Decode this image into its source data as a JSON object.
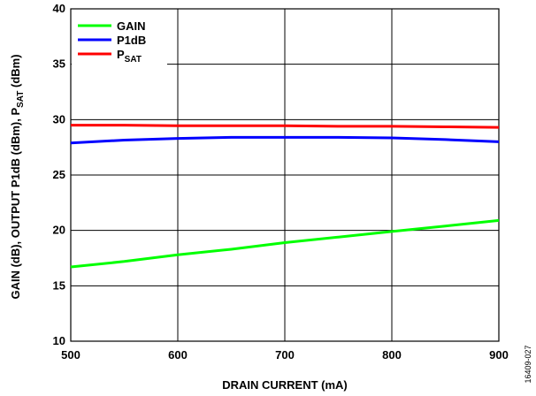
{
  "chart_data": {
    "type": "line",
    "xlabel": "DRAIN CURRENT (mA)",
    "ylabel_parts": [
      "GAIN (dB), OUTPUT P1dB (dBm), P",
      "SAT",
      " (dBm)"
    ],
    "xlim": [
      500,
      900
    ],
    "ylim": [
      10,
      40
    ],
    "x_ticks": [
      500,
      600,
      700,
      800,
      900
    ],
    "y_ticks": [
      10,
      15,
      20,
      25,
      30,
      35,
      40
    ],
    "grid": true,
    "legend_position": "top-left",
    "series": [
      {
        "name": "GAIN",
        "color": "#00ff00",
        "x": [
          500,
          550,
          600,
          650,
          700,
          750,
          800,
          850,
          900
        ],
        "y": [
          16.7,
          17.2,
          17.8,
          18.3,
          18.9,
          19.4,
          19.9,
          20.4,
          20.9
        ]
      },
      {
        "name": "P1dB",
        "color": "#0000ff",
        "x": [
          500,
          550,
          600,
          650,
          700,
          750,
          800,
          850,
          900
        ],
        "y": [
          27.9,
          28.15,
          28.3,
          28.4,
          28.4,
          28.4,
          28.35,
          28.2,
          28.0
        ]
      },
      {
        "name": "PSAT",
        "name_main": "P",
        "name_sub": "SAT",
        "color": "#ff0000",
        "x": [
          500,
          550,
          600,
          650,
          700,
          750,
          800,
          850,
          900
        ],
        "y": [
          29.5,
          29.5,
          29.45,
          29.45,
          29.45,
          29.4,
          29.4,
          29.35,
          29.3
        ]
      }
    ]
  },
  "figure_id": "16409-027"
}
